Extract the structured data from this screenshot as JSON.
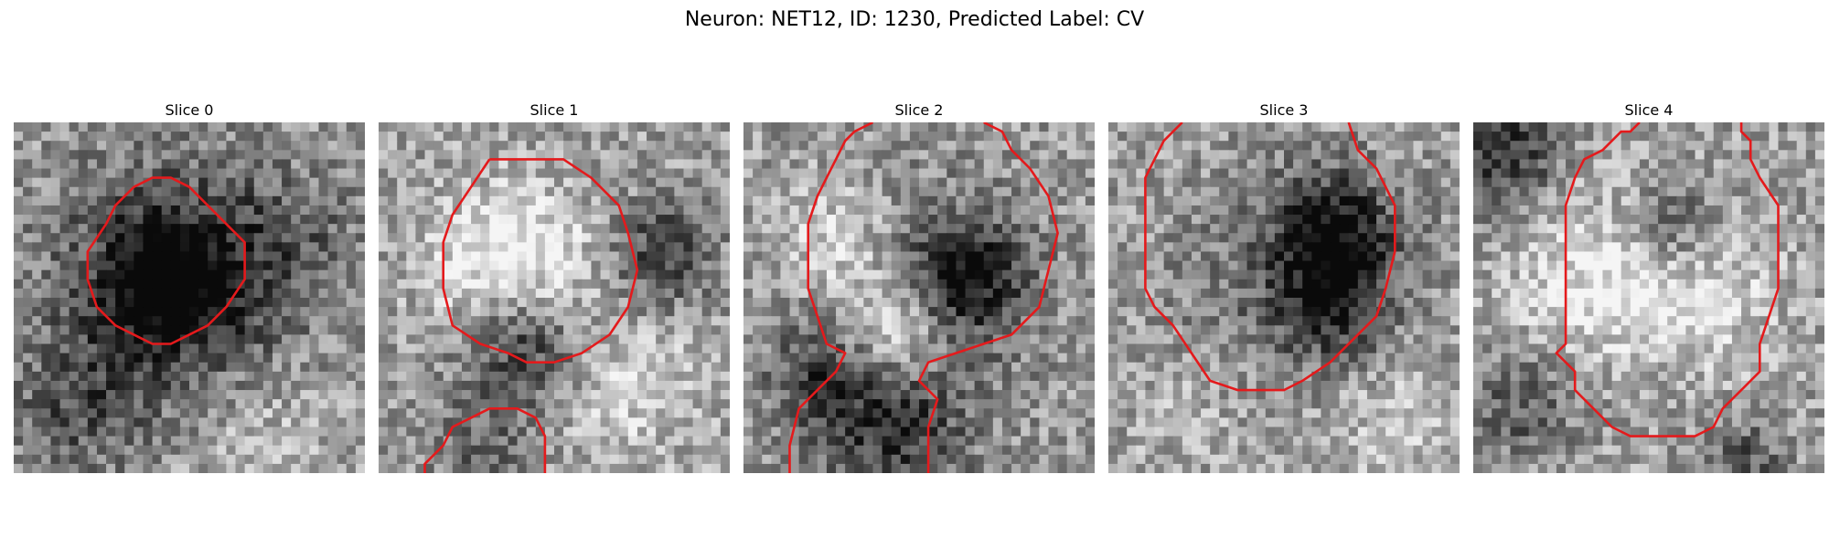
{
  "figure": {
    "title": "Neuron: NET12, ID: 1230, Predicted Label: CV"
  },
  "panels": [
    {
      "title": "Slice 0",
      "seed": 11,
      "blobs": [
        {
          "cx": 17,
          "cy": 17,
          "r": 9,
          "k": -0.55
        },
        {
          "cx": 16,
          "cy": 17,
          "r": 4,
          "k": -0.35
        },
        {
          "cx": 6,
          "cy": 31,
          "r": 5,
          "k": -0.25
        },
        {
          "cx": 26,
          "cy": 33,
          "r": 6,
          "k": 0.15
        },
        {
          "cx": 30,
          "cy": 12,
          "r": 5,
          "k": -0.15
        }
      ],
      "contours": [
        [
          [
            13,
            7
          ],
          [
            15,
            6
          ],
          [
            17,
            6
          ],
          [
            19,
            7
          ],
          [
            21,
            9
          ],
          [
            23,
            11
          ],
          [
            25,
            13
          ],
          [
            25,
            17
          ],
          [
            23,
            20
          ],
          [
            21,
            22
          ],
          [
            19,
            23
          ],
          [
            17,
            24
          ],
          [
            15,
            24
          ],
          [
            13,
            23
          ],
          [
            11,
            22
          ],
          [
            9,
            20
          ],
          [
            8,
            17
          ],
          [
            8,
            14
          ],
          [
            10,
            11
          ],
          [
            11,
            9
          ],
          [
            13,
            7
          ]
        ]
      ]
    },
    {
      "title": "Slice 1",
      "seed": 23,
      "blobs": [
        {
          "cx": 14,
          "cy": 16,
          "r": 6,
          "k": 0.5
        },
        {
          "cx": 15,
          "cy": 23,
          "r": 5,
          "k": -0.55
        },
        {
          "cx": 30,
          "cy": 14,
          "r": 4,
          "k": -0.4
        },
        {
          "cx": 10,
          "cy": 35,
          "r": 4,
          "k": -0.2
        },
        {
          "cx": 26,
          "cy": 28,
          "r": 6,
          "k": 0.2
        }
      ],
      "contours": [
        [
          [
            12,
            4
          ],
          [
            20,
            4
          ],
          [
            23,
            6
          ],
          [
            26,
            9
          ],
          [
            27,
            12
          ],
          [
            28,
            16
          ],
          [
            27,
            20
          ],
          [
            25,
            23
          ],
          [
            22,
            25
          ],
          [
            19,
            26
          ],
          [
            16,
            26
          ],
          [
            14,
            25
          ],
          [
            11,
            24
          ],
          [
            8,
            22
          ],
          [
            7,
            18
          ],
          [
            7,
            13
          ],
          [
            8,
            10
          ],
          [
            10,
            7
          ],
          [
            12,
            4
          ]
        ],
        [
          [
            5,
            38
          ],
          [
            5,
            37
          ],
          [
            7,
            35
          ],
          [
            8,
            33
          ],
          [
            10,
            32
          ],
          [
            12,
            31
          ],
          [
            15,
            31
          ],
          [
            17,
            32
          ],
          [
            18,
            34
          ],
          [
            18,
            38
          ]
        ]
      ]
    },
    {
      "title": "Slice 2",
      "seed": 37,
      "blobs": [
        {
          "cx": 10,
          "cy": 13,
          "r": 5,
          "k": 0.35
        },
        {
          "cx": 17,
          "cy": 19,
          "r": 9,
          "k": -0.3
        },
        {
          "cx": 16,
          "cy": 22,
          "r": 4,
          "k": 0.45
        },
        {
          "cx": 24,
          "cy": 16,
          "r": 4,
          "k": -0.45
        },
        {
          "cx": 8,
          "cy": 28,
          "r": 4,
          "k": -0.3
        },
        {
          "cx": 16,
          "cy": 34,
          "r": 5,
          "k": -0.35
        }
      ],
      "contours": [
        [
          [
            14,
            0
          ],
          [
            12,
            1
          ],
          [
            11,
            2
          ],
          [
            10,
            4
          ],
          [
            9,
            6
          ],
          [
            8,
            8
          ],
          [
            7,
            11
          ],
          [
            7,
            15
          ],
          [
            7,
            18
          ],
          [
            8,
            21
          ],
          [
            9,
            24
          ],
          [
            11,
            25
          ],
          [
            10,
            27
          ],
          [
            8,
            29
          ],
          [
            6,
            31
          ],
          [
            5,
            35
          ],
          [
            5,
            38
          ]
        ],
        [
          [
            26,
            0
          ],
          [
            28,
            1
          ],
          [
            29,
            3
          ],
          [
            31,
            5
          ],
          [
            33,
            8
          ],
          [
            34,
            12
          ],
          [
            33,
            16
          ],
          [
            32,
            20
          ],
          [
            29,
            23
          ],
          [
            26,
            24
          ],
          [
            23,
            25
          ],
          [
            20,
            26
          ],
          [
            19,
            28
          ],
          [
            21,
            30
          ],
          [
            20,
            33
          ],
          [
            20,
            38
          ]
        ]
      ]
    },
    {
      "title": "Slice 3",
      "seed": 51,
      "blobs": [
        {
          "cx": 24,
          "cy": 12,
          "r": 5,
          "k": -0.55
        },
        {
          "cx": 24,
          "cy": 20,
          "r": 4,
          "k": -0.35
        },
        {
          "cx": 16,
          "cy": 18,
          "r": 8,
          "k": -0.15
        },
        {
          "cx": 8,
          "cy": 30,
          "r": 5,
          "k": 0.1
        },
        {
          "cx": 30,
          "cy": 32,
          "r": 5,
          "k": 0.15
        }
      ],
      "contours": [
        [
          [
            8,
            0
          ],
          [
            6,
            2
          ],
          [
            5,
            4
          ],
          [
            4,
            6
          ],
          [
            4,
            12
          ],
          [
            4,
            18
          ],
          [
            5,
            20
          ],
          [
            7,
            22
          ],
          [
            9,
            25
          ],
          [
            11,
            28
          ],
          [
            14,
            29
          ],
          [
            19,
            29
          ],
          [
            21,
            28
          ],
          [
            24,
            26
          ],
          [
            27,
            23
          ],
          [
            29,
            21
          ],
          [
            30,
            18
          ],
          [
            31,
            14
          ],
          [
            31,
            9
          ],
          [
            30,
            7
          ],
          [
            29,
            5
          ],
          [
            27,
            3
          ],
          [
            26,
            0
          ]
        ]
      ]
    },
    {
      "title": "Slice 4",
      "seed": 67,
      "blobs": [
        {
          "cx": 18,
          "cy": 19,
          "r": 8,
          "k": 0.5
        },
        {
          "cx": 18,
          "cy": 25,
          "r": 6,
          "k": -0.25
        },
        {
          "cx": 21,
          "cy": 11,
          "r": 4,
          "k": -0.4
        },
        {
          "cx": 3,
          "cy": 3,
          "r": 4,
          "k": -0.45
        },
        {
          "cx": 5,
          "cy": 30,
          "r": 4,
          "k": -0.3
        },
        {
          "cx": 29,
          "cy": 36,
          "r": 3,
          "k": -0.3
        }
      ],
      "contours": [
        [
          [
            18,
            0
          ],
          [
            17,
            1
          ],
          [
            16,
            1
          ],
          [
            14,
            3
          ],
          [
            12,
            4
          ],
          [
            11,
            6
          ],
          [
            10,
            9
          ],
          [
            10,
            13
          ],
          [
            10,
            17
          ],
          [
            10,
            20
          ],
          [
            10,
            24
          ],
          [
            9,
            25
          ],
          [
            10,
            26
          ],
          [
            11,
            27
          ],
          [
            11,
            29
          ],
          [
            13,
            31
          ],
          [
            15,
            33
          ],
          [
            17,
            34
          ],
          [
            24,
            34
          ],
          [
            26,
            33
          ],
          [
            27,
            31
          ],
          [
            29,
            29
          ],
          [
            31,
            27
          ],
          [
            31,
            24
          ],
          [
            32,
            21
          ],
          [
            33,
            18
          ],
          [
            33,
            13
          ],
          [
            33,
            9
          ],
          [
            31,
            6
          ],
          [
            30,
            4
          ],
          [
            30,
            2
          ],
          [
            29,
            1
          ],
          [
            29,
            0
          ]
        ]
      ]
    }
  ]
}
